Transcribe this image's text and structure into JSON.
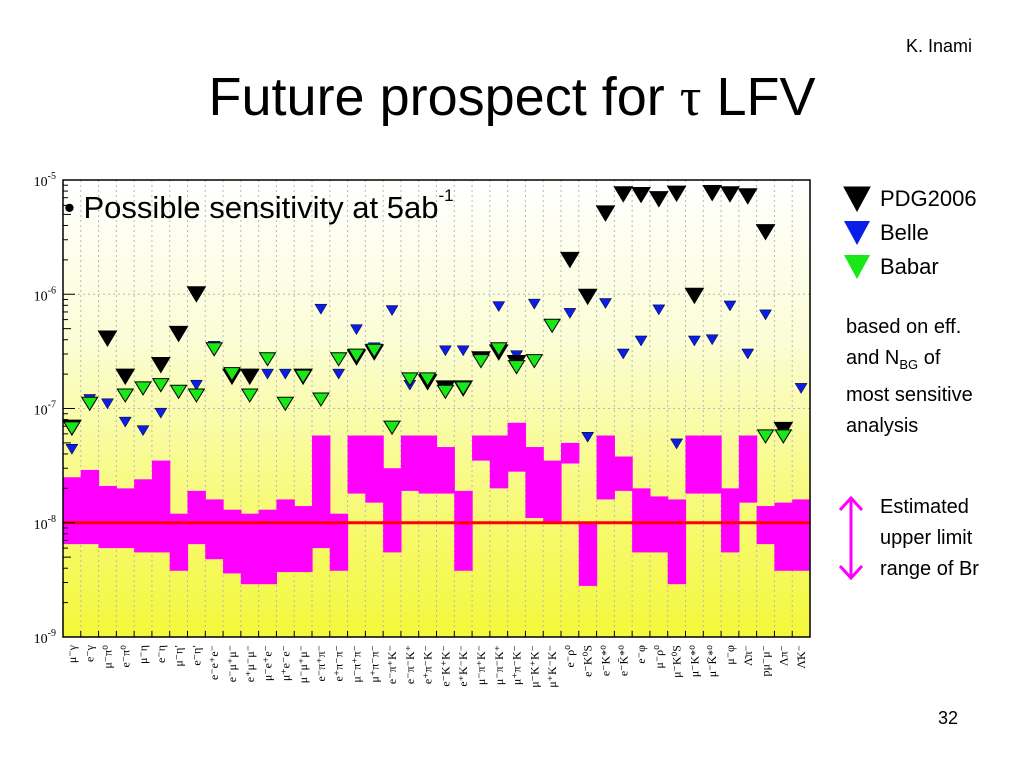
{
  "slide": {
    "author": "K. Inami",
    "title_prefix": "Future prospect for ",
    "title_tau": "τ",
    "title_suffix": " LFV",
    "bullet_marker": "•",
    "bullet_text": "Possible sensitivity at 5ab",
    "bullet_sup": "-1",
    "note_line1": "based on eff.",
    "note_line2a": "and N",
    "note_line2sub": "BG",
    "note_line2b": " of",
    "note_line3": "most sensitive",
    "note_line4": "analysis",
    "arrow_label_line1": "Estimated",
    "arrow_label_line2": "upper limit",
    "arrow_label_line3": "range of Br",
    "page_number": "32"
  },
  "legend": [
    {
      "label": "PDG2006",
      "color": "#000000"
    },
    {
      "label": "Belle",
      "color": "#0a1ee8"
    },
    {
      "label": "Babar",
      "color": "#18e818"
    }
  ],
  "colors": {
    "band": "#ff00ff",
    "reference_line": "#ff0000",
    "arrow": "#ff00ff",
    "pdg": "#000000",
    "belle": "#0a1ee8",
    "babar": "#18e818"
  },
  "chart_data": {
    "type": "scatter",
    "y_scale": "log",
    "ylim": [
      1e-09,
      1e-05
    ],
    "grid": true,
    "yticks": [
      {
        "base": "10",
        "exp": "-5"
      },
      {
        "base": "10",
        "exp": "-6"
      },
      {
        "base": "10",
        "exp": "-7"
      },
      {
        "base": "10",
        "exp": "-8"
      },
      {
        "base": "10",
        "exp": "-9"
      }
    ],
    "reference_line": 1e-08,
    "categories": [
      "μ⁻γ",
      "e⁻γ",
      "μ⁻π⁰",
      "e⁻π⁰",
      "μ⁻η",
      "e⁻η",
      "μ⁻η′",
      "e⁻η′",
      "e⁻e⁺e⁻",
      "e⁻μ⁺μ⁻",
      "e⁺μ⁻μ⁻",
      "μ⁻e⁺e⁻",
      "μ⁺e⁻e⁻",
      "μ⁻μ⁺μ⁻",
      "e⁻π⁺π⁻",
      "e⁺π⁻π⁻",
      "μ⁻π⁺π⁻",
      "μ⁺π⁻π⁻",
      "e⁻π⁺K⁻",
      "e⁻π⁻K⁺",
      "e⁺π⁻K⁻",
      "e⁻K⁺K⁻",
      "e⁺K⁻K⁻",
      "μ⁻π⁺K⁻",
      "μ⁻π⁻K⁺",
      "μ⁺π⁻K⁻",
      "μ⁻K⁺K⁻",
      "μ⁺K⁻K⁻",
      "e⁻ρ⁰",
      "e⁻K⁰S",
      "e⁻K*⁰",
      "e⁻K̄*⁰",
      "e⁻φ",
      "μ⁻ρ⁰",
      "μ⁻K⁰S",
      "μ⁻K*⁰",
      "μ⁻K̄*⁰",
      "μ⁻φ",
      "Λ̄π⁻",
      "pμ⁻μ⁻",
      "Λπ⁻",
      "Λ̄K⁻"
    ],
    "series": [
      {
        "name": "PDG2006",
        "x": [
          0,
          2,
          3,
          5,
          6,
          7,
          9,
          10,
          13,
          16,
          17,
          20,
          21,
          22,
          23,
          24,
          25,
          28,
          29,
          30,
          31,
          32,
          33,
          34,
          35,
          36,
          37,
          38,
          39,
          40
        ],
        "values": [
          6.8e-08,
          4.1e-07,
          1.9e-07,
          2.4e-07,
          4.5e-07,
          1e-06,
          1.9e-07,
          1.9e-07,
          1.9e-07,
          2.8e-07,
          3.1e-07,
          1.7e-07,
          1.5e-07,
          1.5e-07,
          2.7e-07,
          3.1e-07,
          2.5e-07,
          2e-06,
          9.5e-07,
          5.1e-06,
          7.5e-06,
          7.4e-06,
          6.8e-06,
          7.6e-06,
          9.7e-07,
          7.7e-06,
          7.5e-06,
          7.2e-06,
          3.5e-06,
          6.5e-08
        ]
      },
      {
        "name": "Belle",
        "x": [
          0,
          1,
          2,
          3,
          4,
          5,
          6,
          7,
          8,
          9,
          10,
          11,
          12,
          13,
          14,
          15,
          16,
          17,
          18,
          19,
          20,
          21,
          22,
          23,
          24,
          25,
          26,
          27,
          28,
          29,
          30,
          31,
          32,
          33,
          34,
          35,
          36,
          37,
          38,
          39,
          40,
          41
        ],
        "values": [
          4.4e-08,
          1.2e-07,
          1.1e-07,
          7.6e-08,
          6.4e-08,
          9.1e-08,
          1.4e-07,
          1.6e-07,
          3.5e-07,
          2e-07,
          2e-07,
          2e-07,
          2e-07,
          1.9e-07,
          7.4e-07,
          2e-07,
          4.9e-07,
          3.4e-07,
          7.2e-07,
          1.6e-07,
          1.8e-07,
          3.2e-07,
          3.2e-07,
          2.6e-07,
          7.8e-07,
          2.9e-07,
          8.2e-07,
          5.3e-07,
          6.8e-07,
          5.6e-08,
          8.3e-07,
          3e-07,
          3.9e-07,
          7.3e-07,
          4.9e-08,
          3.9e-07,
          4e-07,
          7.9e-07,
          3e-07,
          6.6e-07,
          5.6e-08,
          1.5e-07
        ]
      },
      {
        "name": "Babar",
        "x": [
          0,
          1,
          3,
          4,
          5,
          6,
          7,
          8,
          9,
          10,
          11,
          12,
          13,
          14,
          15,
          16,
          17,
          18,
          19,
          20,
          21,
          22,
          23,
          24,
          25,
          26,
          27,
          39,
          40
        ],
        "values": [
          6.7e-08,
          1.1e-07,
          1.3e-07,
          1.5e-07,
          1.6e-07,
          1.4e-07,
          1.3e-07,
          3.3e-07,
          2e-07,
          1.3e-07,
          2.7e-07,
          1.1e-07,
          1.9e-07,
          1.2e-07,
          2.7e-07,
          2.9e-07,
          3.2e-07,
          6.8e-08,
          1.8e-07,
          1.8e-07,
          1.4e-07,
          1.5e-07,
          2.6e-07,
          3.3e-07,
          2.3e-07,
          2.6e-07,
          5.3e-07,
          5.7e-08,
          5.7e-08
        ]
      }
    ],
    "bands": [
      {
        "low": 6.5e-09,
        "high": 2.5e-08
      },
      {
        "low": 6.5e-09,
        "high": 2.9e-08
      },
      {
        "low": 6e-09,
        "high": 2.1e-08
      },
      {
        "low": 6e-09,
        "high": 2e-08
      },
      {
        "low": 5.5e-09,
        "high": 2.4e-08
      },
      {
        "low": 5.5e-09,
        "high": 3.5e-08
      },
      {
        "low": 3.8e-09,
        "high": 1.2e-08
      },
      {
        "low": 6.5e-09,
        "high": 1.9e-08
      },
      {
        "low": 4.8e-09,
        "high": 1.6e-08
      },
      {
        "low": 3.6e-09,
        "high": 1.3e-08
      },
      {
        "low": 2.9e-09,
        "high": 1.2e-08
      },
      {
        "low": 2.9e-09,
        "high": 1.3e-08
      },
      {
        "low": 3.7e-09,
        "high": 1.6e-08
      },
      {
        "low": 3.7e-09,
        "high": 1.4e-08
      },
      {
        "low": 6e-09,
        "high": 5.8e-08
      },
      {
        "low": 3.8e-09,
        "high": 1.2e-08
      },
      {
        "low": 1.8e-08,
        "high": 5.8e-08
      },
      {
        "low": 1.5e-08,
        "high": 5.8e-08
      },
      {
        "low": 5.5e-09,
        "high": 3e-08
      },
      {
        "low": 1.9e-08,
        "high": 5.8e-08
      },
      {
        "low": 1.8e-08,
        "high": 5.8e-08
      },
      {
        "low": 1.8e-08,
        "high": 4.6e-08
      },
      {
        "low": 3.8e-09,
        "high": 1.9e-08
      },
      {
        "low": 3.5e-08,
        "high": 5.8e-08
      },
      {
        "low": 2e-08,
        "high": 5.8e-08
      },
      {
        "low": 2.8e-08,
        "high": 7.5e-08
      },
      {
        "low": 1.1e-08,
        "high": 4.6e-08
      },
      {
        "low": 1e-08,
        "high": 3.5e-08
      },
      {
        "low": 3.3e-08,
        "high": 5e-08
      },
      {
        "low": 2.8e-09,
        "high": 1e-08
      },
      {
        "low": 1.6e-08,
        "high": 5.8e-08
      },
      {
        "low": 1.9e-08,
        "high": 3.8e-08
      },
      {
        "low": 5.5e-09,
        "high": 2e-08
      },
      {
        "low": 5.5e-09,
        "high": 1.7e-08
      },
      {
        "low": 2.9e-09,
        "high": 1.6e-08
      },
      {
        "low": 1.8e-08,
        "high": 5.8e-08
      },
      {
        "low": 1.8e-08,
        "high": 5.8e-08
      },
      {
        "low": 5.5e-09,
        "high": 2e-08
      },
      {
        "low": 1.5e-08,
        "high": 5.8e-08
      },
      {
        "low": 6.5e-09,
        "high": 1.4e-08
      },
      {
        "low": 3.8e-09,
        "high": 1.5e-08
      },
      {
        "low": 3.8e-09,
        "high": 1.6e-08
      }
    ]
  }
}
